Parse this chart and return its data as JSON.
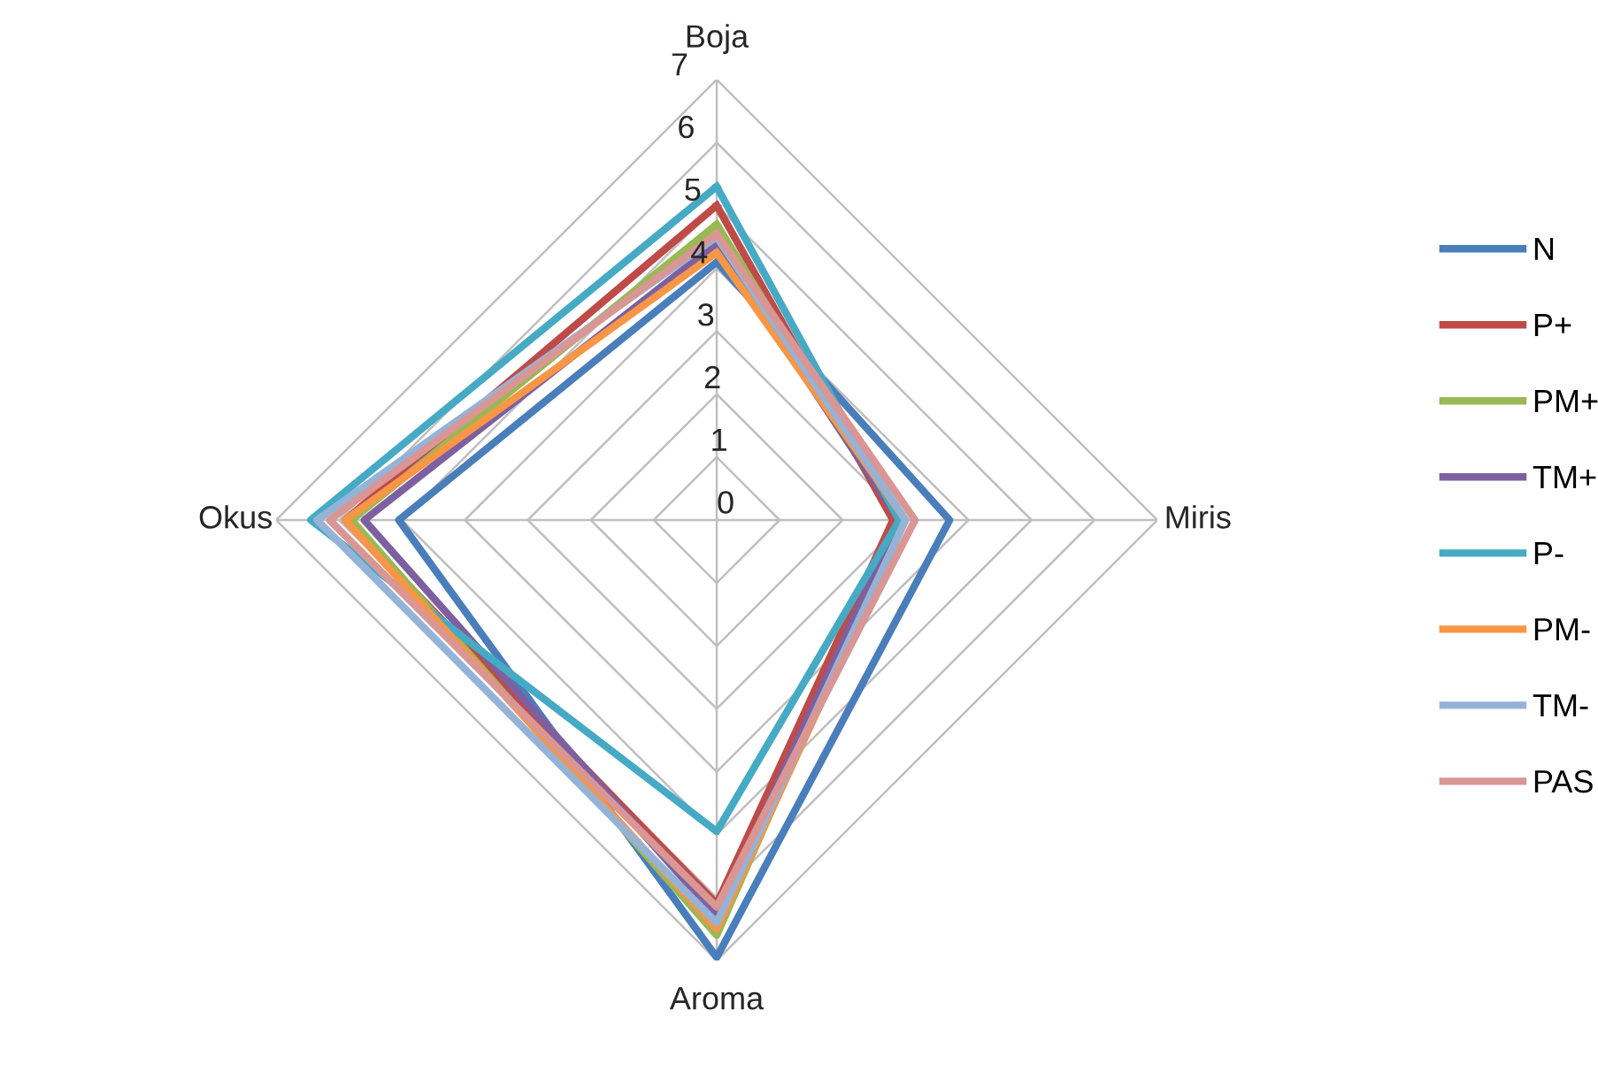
{
  "chart_data": {
    "type": "radar",
    "categories": [
      "Boja",
      "Miris",
      "Aroma",
      "Okus"
    ],
    "ylim": [
      0,
      7
    ],
    "yticks": [
      0,
      1,
      2,
      3,
      4,
      5,
      6,
      7
    ],
    "grid": true,
    "legend": "right",
    "line_style": "solid",
    "marker": "none",
    "series": [
      {
        "name": "N",
        "color": "#4a7ebb",
        "values": [
          4.1,
          3.7,
          6.95,
          5.05
        ]
      },
      {
        "name": "P+",
        "color": "#be4b48",
        "values": [
          5.0,
          2.8,
          6.1,
          5.9
        ]
      },
      {
        "name": "PM+",
        "color": "#98b954",
        "values": [
          4.7,
          2.9,
          6.6,
          5.8
        ]
      },
      {
        "name": "TM+",
        "color": "#7d60a0",
        "values": [
          4.4,
          2.9,
          6.3,
          5.6
        ]
      },
      {
        "name": "P-",
        "color": "#46aac5",
        "values": [
          5.3,
          2.9,
          4.95,
          6.45
        ]
      },
      {
        "name": "PM-",
        "color": "#f79646",
        "values": [
          4.25,
          3.0,
          6.5,
          5.9
        ]
      },
      {
        "name": "TM-",
        "color": "#95b3d7",
        "values": [
          4.5,
          3.0,
          6.4,
          6.35
        ]
      },
      {
        "name": "PAS",
        "color": "#d99694",
        "values": [
          4.55,
          3.15,
          6.15,
          6.15
        ]
      }
    ]
  }
}
